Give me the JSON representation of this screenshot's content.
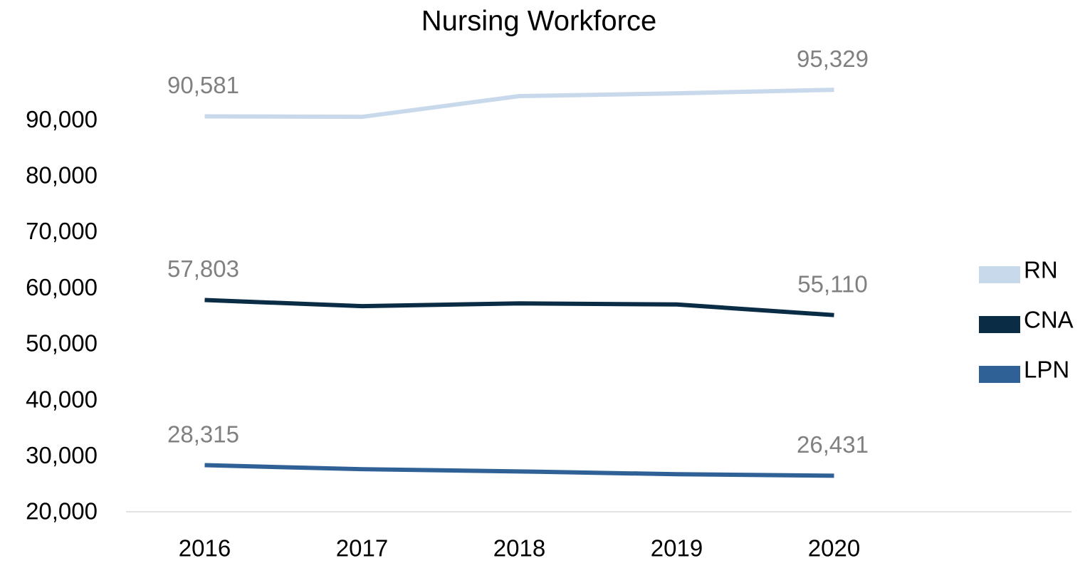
{
  "chart_data": {
    "type": "line",
    "title": "Nursing Workforce",
    "categories": [
      "2016",
      "2017",
      "2018",
      "2019",
      "2020"
    ],
    "series": [
      {
        "name": "RN",
        "color": "#c9d9ec",
        "values": [
          90581,
          90500,
          94200,
          94700,
          95329
        ],
        "value_labels": [
          "90,581",
          null,
          null,
          null,
          "95,329"
        ]
      },
      {
        "name": "CNA",
        "color": "#0a2d45",
        "values": [
          57803,
          56700,
          57200,
          57000,
          55110
        ],
        "value_labels": [
          "57,803",
          null,
          null,
          null,
          "55,110"
        ]
      },
      {
        "name": "LPN",
        "color": "#2f6196",
        "values": [
          28315,
          27600,
          27200,
          26700,
          26431
        ],
        "value_labels": [
          "28,315",
          null,
          null,
          null,
          "26,431"
        ]
      }
    ],
    "ylim": [
      20000,
      100000
    ],
    "yticks": [
      {
        "value": 20000,
        "label": "20,000"
      },
      {
        "value": 30000,
        "label": "30,000"
      },
      {
        "value": 40000,
        "label": "40,000"
      },
      {
        "value": 50000,
        "label": "50,000"
      },
      {
        "value": 60000,
        "label": "60,000"
      },
      {
        "value": 70000,
        "label": "70,000"
      },
      {
        "value": 80000,
        "label": "80,000"
      },
      {
        "value": 90000,
        "label": "90,000"
      }
    ],
    "grid": false,
    "legend": "right"
  }
}
